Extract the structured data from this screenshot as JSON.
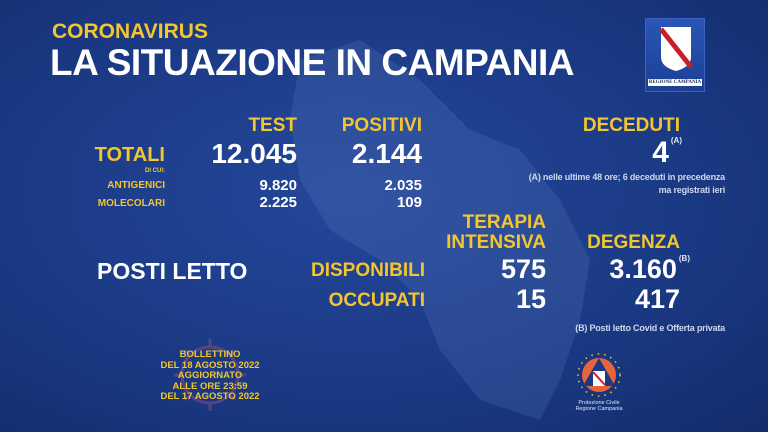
{
  "header": {
    "kicker": "CORONAVIRUS",
    "title": "LA SITUAZIONE IN CAMPANIA",
    "logo_text": "REGIONE CAMPANIA"
  },
  "test": {
    "header": "TEST",
    "totali_label": "TOTALI",
    "di_cui_label": "DI CUI:",
    "totale": "12.045",
    "antigenici_label": "ANTIGENICI",
    "antigenici": "9.820",
    "molecolari_label": "MOLECOLARI",
    "molecolari": "2.225"
  },
  "positivi": {
    "header": "POSITIVI",
    "totale": "2.144",
    "antigenici": "2.035",
    "molecolari": "109"
  },
  "deceduti": {
    "header": "DECEDUTI",
    "value": "4",
    "marker": "(A)",
    "note_line1": "(A) nelle ultime 48 ore; 6 deceduti in precedenza",
    "note_line2": "ma registrati ieri"
  },
  "posti_letto": {
    "label": "POSTI LETTO",
    "terapia_line1": "TERAPIA",
    "terapia_line2": "INTENSIVA",
    "degenza_header": "DEGENZA",
    "disponibili_label": "DISPONIBILI",
    "ti_disponibili": "575",
    "degenza_disponibili": "3.160",
    "degenza_marker": "(B)",
    "occupati_label": "OCCUPATI",
    "ti_occupati": "15",
    "degenza_occupati": "417",
    "note": "(B) Posti letto Covid e Offerta privata"
  },
  "bollettino": [
    "BOLLETTINO",
    "DEL 18 AGOSTO 2022",
    "AGGIORNATO",
    "ALLE ORE 23:59",
    "DEL 17 AGOSTO 2022"
  ],
  "protezione_civile": {
    "line1": "Protezione Civile",
    "line2": "Regione Campania"
  },
  "colors": {
    "background": "#1b3a85",
    "accent": "#f3c52f",
    "text": "#ffffff"
  }
}
